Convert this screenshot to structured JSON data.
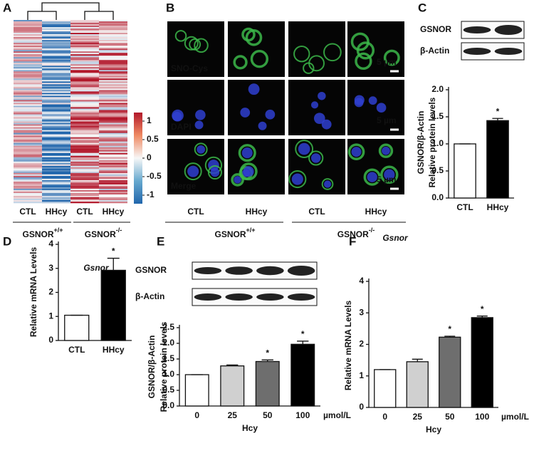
{
  "panel_labels": [
    "A",
    "B",
    "C",
    "D",
    "E",
    "F"
  ],
  "heatmap": {
    "legend_ticks": [
      1,
      0.5,
      0,
      -0.5,
      -1
    ],
    "groups": [
      "CTL",
      "HHcy",
      "CTL",
      "HHcy"
    ],
    "genotypes": [
      {
        "name": "GSNOR",
        "sup": "+/+"
      },
      {
        "name": "GSNOR",
        "sup": "-/-"
      }
    ]
  },
  "micrograph": {
    "channels": [
      "SNO-Cys",
      "DAPI",
      "Merge"
    ],
    "scale_bar": "5 µm",
    "groups": [
      "CTL",
      "HHcy",
      "CTL",
      "HHcy"
    ],
    "genotypes": [
      {
        "name": "GSNOR",
        "sup": "+/+"
      },
      {
        "name": "GSNOR",
        "sup": "-/-"
      }
    ]
  },
  "blot_c": {
    "labels": [
      "GSNOR",
      "β-Actin"
    ]
  },
  "blot_e": {
    "labels": [
      "GSNOR",
      "β-Actin"
    ]
  },
  "chart_data": [
    {
      "type": "bar",
      "y_label": [
        "GSNOR/β-Actin",
        "Relative protein levels"
      ],
      "categories": [
        "CTL",
        "HHcy"
      ],
      "values": [
        1.0,
        1.43
      ],
      "errors": [
        0,
        0.04
      ],
      "colors": [
        "#ffffff",
        "#000000"
      ],
      "significance": [
        null,
        "*"
      ],
      "ylim": [
        0,
        2.0
      ],
      "yticks": [
        {
          "value": 0,
          "label": "0.0"
        },
        {
          "value": 0.5,
          "label": "0.5"
        },
        {
          "value": 1,
          "label": "1.0"
        },
        {
          "value": 1.5,
          "label": "1.5"
        },
        {
          "value": 2,
          "label": "2.0"
        }
      ]
    },
    {
      "type": "bar",
      "title": "Gsnor",
      "y_label": [
        "Relative mRNA Levels"
      ],
      "categories": [
        "CTL",
        "HHcy"
      ],
      "values": [
        1.05,
        2.92
      ],
      "errors": [
        0,
        0.5
      ],
      "colors": [
        "#ffffff",
        "#000000"
      ],
      "significance": [
        null,
        "*"
      ],
      "ylim": [
        0,
        4
      ],
      "yticks": [
        0,
        1,
        2,
        3,
        4
      ]
    },
    {
      "type": "bar",
      "y_label": [
        "GSNOR/β-Actin",
        "Relative protein levels"
      ],
      "x_label": "Hcy",
      "x_unit": "µmol/L",
      "categories": [
        "0",
        "25",
        "50",
        "100"
      ],
      "values": [
        1.0,
        1.28,
        1.42,
        1.97
      ],
      "errors": [
        0,
        0.03,
        0.05,
        0.1
      ],
      "colors": [
        "#ffffff",
        "#d0d0d0",
        "#6e6e6e",
        "#000000"
      ],
      "significance": [
        null,
        null,
        "*",
        "*"
      ],
      "ylim": [
        0,
        2.5
      ],
      "yticks": [
        {
          "value": 0,
          "label": "0.0"
        },
        {
          "value": 0.5,
          "label": "0.5"
        },
        {
          "value": 1,
          "label": "1.0"
        },
        {
          "value": 1.5,
          "label": "1.5"
        },
        {
          "value": 2,
          "label": "2.0"
        },
        {
          "value": 2.5,
          "label": "2.5"
        }
      ]
    },
    {
      "type": "bar",
      "title": "Gsnor",
      "y_label": [
        "Relative mRNA Levels"
      ],
      "x_label": "Hcy",
      "x_unit": "µmol/L",
      "categories": [
        "0",
        "25",
        "50",
        "100"
      ],
      "values": [
        1.2,
        1.45,
        2.23,
        2.85
      ],
      "errors": [
        0,
        0.08,
        0.03,
        0.05
      ],
      "colors": [
        "#ffffff",
        "#d0d0d0",
        "#6e6e6e",
        "#000000"
      ],
      "significance": [
        null,
        null,
        "*",
        "*"
      ],
      "ylim": [
        0,
        4
      ],
      "yticks": [
        0,
        1,
        2,
        3,
        4
      ]
    }
  ]
}
